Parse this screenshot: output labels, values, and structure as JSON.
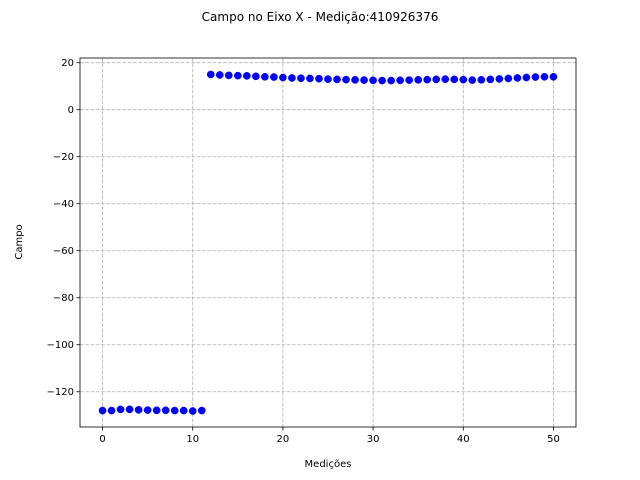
{
  "chart_data": {
    "type": "scatter",
    "title": "Campo no Eixo X - Medição:410926376",
    "xlabel": "Medições",
    "ylabel": "Campo",
    "xlim": [
      -2.5,
      52.5
    ],
    "ylim": [
      -135,
      22
    ],
    "xticks": [
      0,
      10,
      20,
      30,
      40,
      50
    ],
    "yticks": [
      20,
      0,
      -20,
      -40,
      -60,
      -80,
      -100,
      -120
    ],
    "ytick_labels": [
      "20",
      "0",
      "−20",
      "−40",
      "−60",
      "−80",
      "−100",
      "−120"
    ],
    "grid": true,
    "marker_color": "#0000ff",
    "series": [
      {
        "x": [
          0,
          1,
          2,
          3,
          4,
          5,
          6,
          7,
          8,
          9,
          10,
          11,
          12,
          13,
          14,
          15,
          16,
          17,
          18,
          19,
          20,
          21,
          22,
          23,
          24,
          25,
          26,
          27,
          28,
          29,
          30,
          31,
          32,
          33,
          34,
          35,
          36,
          37,
          38,
          39,
          40,
          41,
          42,
          43,
          44,
          45,
          46,
          47,
          48,
          49,
          50
        ],
        "y": [
          -128,
          -128,
          -127.5,
          -127.5,
          -127.7,
          -127.8,
          -127.9,
          -127.9,
          -128,
          -128,
          -128.2,
          -128,
          15,
          14.8,
          14.6,
          14.5,
          14.4,
          14.2,
          14,
          13.9,
          13.7,
          13.5,
          13.4,
          13.3,
          13.2,
          13,
          12.9,
          12.8,
          12.7,
          12.6,
          12.5,
          12.4,
          12.4,
          12.5,
          12.6,
          12.7,
          12.8,
          12.9,
          13,
          12.9,
          12.8,
          12.6,
          12.7,
          12.9,
          13.1,
          13.3,
          13.5,
          13.7,
          13.9,
          14,
          14
        ]
      }
    ]
  }
}
